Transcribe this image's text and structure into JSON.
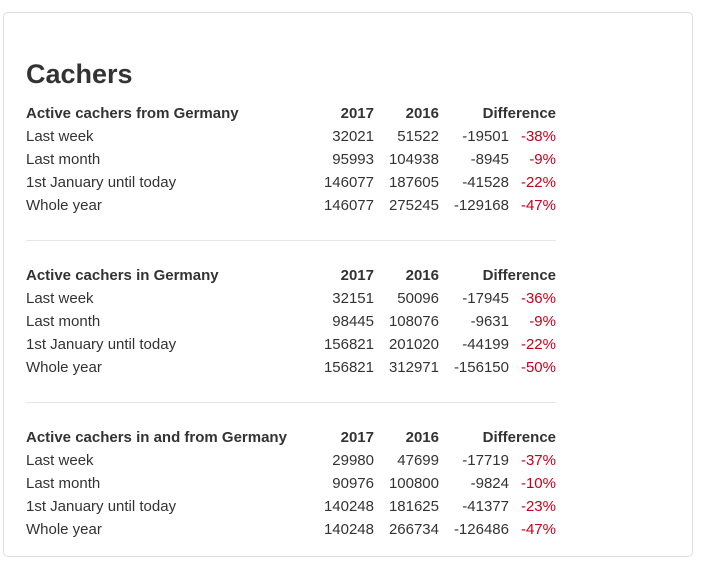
{
  "title": "Cachers",
  "sections": [
    {
      "heading": "Active cachers from Germany",
      "col_2017": "2017",
      "col_2016": "2016",
      "col_diff": "Difference",
      "rows": [
        {
          "label": "Last week",
          "v2017": "32021",
          "v2016": "51522",
          "diff": "-19501",
          "pct": "-38%"
        },
        {
          "label": "Last month",
          "v2017": "95993",
          "v2016": "104938",
          "diff": "-8945",
          "pct": "-9%"
        },
        {
          "label": "1st January until today",
          "v2017": "146077",
          "v2016": "187605",
          "diff": "-41528",
          "pct": "-22%"
        },
        {
          "label": "Whole year",
          "v2017": "146077",
          "v2016": "275245",
          "diff": "-129168",
          "pct": "-47%"
        }
      ]
    },
    {
      "heading": "Active cachers in Germany",
      "col_2017": "2017",
      "col_2016": "2016",
      "col_diff": "Difference",
      "rows": [
        {
          "label": "Last week",
          "v2017": "32151",
          "v2016": "50096",
          "diff": "-17945",
          "pct": "-36%"
        },
        {
          "label": "Last month",
          "v2017": "98445",
          "v2016": "108076",
          "diff": "-9631",
          "pct": "-9%"
        },
        {
          "label": "1st January until today",
          "v2017": "156821",
          "v2016": "201020",
          "diff": "-44199",
          "pct": "-22%"
        },
        {
          "label": "Whole year",
          "v2017": "156821",
          "v2016": "312971",
          "diff": "-156150",
          "pct": "-50%"
        }
      ]
    },
    {
      "heading": "Active cachers in and from Germany",
      "col_2017": "2017",
      "col_2016": "2016",
      "col_diff": "Difference",
      "rows": [
        {
          "label": "Last week",
          "v2017": "29980",
          "v2016": "47699",
          "diff": "-17719",
          "pct": "-37%"
        },
        {
          "label": "Last month",
          "v2017": "90976",
          "v2016": "100800",
          "diff": "-9824",
          "pct": "-10%"
        },
        {
          "label": "1st January until today",
          "v2017": "140248",
          "v2016": "181625",
          "diff": "-41377",
          "pct": "-23%"
        },
        {
          "label": "Whole year",
          "v2017": "140248",
          "v2016": "266734",
          "diff": "-126486",
          "pct": "-47%"
        }
      ]
    }
  ],
  "colors": {
    "negative_percent": "#c4001a",
    "text": "#333333",
    "border": "#dddddd"
  }
}
